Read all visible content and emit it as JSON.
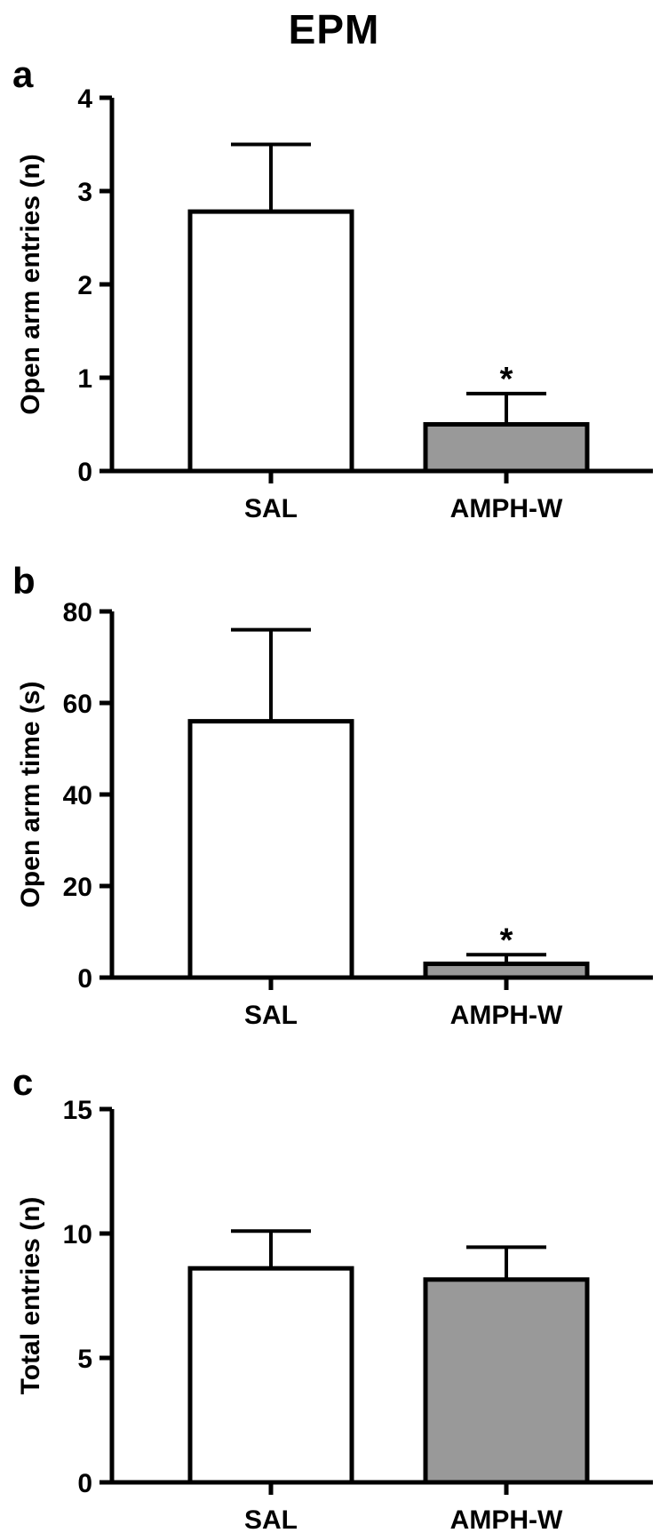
{
  "title": "EPM",
  "colors": {
    "SAL": "#ffffff",
    "AMPH-W": "#999999",
    "stroke": "#000000"
  },
  "chart_data": [
    {
      "type": "bar",
      "panel": "a",
      "categories": [
        "SAL",
        "AMPH-W"
      ],
      "values": [
        2.78,
        0.5
      ],
      "errors": [
        0.72,
        0.33
      ],
      "significance": [
        "",
        "*"
      ],
      "ylabel": "Open arm entries (n)",
      "ylim": [
        0,
        4
      ],
      "yticks": [
        "0",
        "1",
        "2",
        "3",
        "4"
      ]
    },
    {
      "type": "bar",
      "panel": "b",
      "categories": [
        "SAL",
        "AMPH-W"
      ],
      "values": [
        56,
        3
      ],
      "errors": [
        20,
        2
      ],
      "significance": [
        "",
        "*"
      ],
      "ylabel": "Open arm time (s)",
      "ylim": [
        0,
        80
      ],
      "yticks": [
        "0",
        "20",
        "40",
        "60",
        "80"
      ]
    },
    {
      "type": "bar",
      "panel": "c",
      "categories": [
        "SAL",
        "AMPH-W"
      ],
      "values": [
        8.6,
        8.15
      ],
      "errors": [
        1.5,
        1.3
      ],
      "significance": [
        "",
        ""
      ],
      "ylabel": "Total entries (n)",
      "ylim": [
        0,
        15
      ],
      "yticks": [
        "0",
        "5",
        "10",
        "15"
      ]
    }
  ]
}
